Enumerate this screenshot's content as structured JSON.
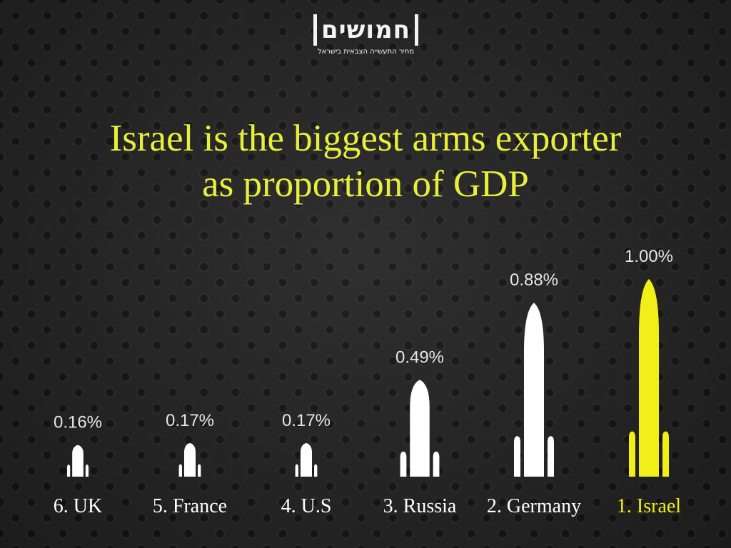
{
  "logo": {
    "wordmark": "חמושים",
    "tagline": "מחיר התעשייה הצבאית בישראל"
  },
  "colors": {
    "highlight": "#f2ee18",
    "rocket": "#ffffff",
    "title": "#e8ee3a",
    "label": "#ffffff",
    "value_label": "#e6e6e6"
  },
  "chart_data": {
    "type": "bar",
    "title_line1": "Israel is the biggest arms exporter",
    "title_line2": "as proportion of GDP",
    "categories": [
      "6. UK",
      "5. France",
      "4. U.S",
      "3. Russia",
      "2. Germany",
      "1. Israel"
    ],
    "values": [
      0.16,
      0.17,
      0.17,
      0.49,
      0.88,
      1.0
    ],
    "value_labels": [
      "0.16%",
      "0.17%",
      "0.17%",
      "0.49%",
      "0.88%",
      "1.00%"
    ],
    "unit": "%",
    "highlight_index": 5,
    "ylim": [
      0,
      1.0
    ],
    "grid": false,
    "legend": "none"
  }
}
